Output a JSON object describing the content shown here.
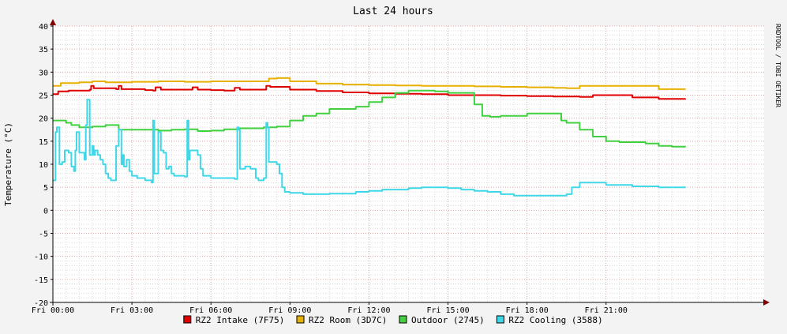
{
  "chart_data": {
    "type": "line",
    "title": "Last 24 hours",
    "ylabel": "Temperature (°C)",
    "xlabel": "",
    "watermark": "RRDTOOL / TOBI OETIKER",
    "ylim": [
      -20,
      40
    ],
    "xlim": [
      0,
      27
    ],
    "yticks": [
      {
        "value": 40,
        "label": "40"
      },
      {
        "value": 35,
        "label": "35"
      },
      {
        "value": 30,
        "label": "30"
      },
      {
        "value": 25,
        "label": "25"
      },
      {
        "value": 20,
        "label": "20"
      },
      {
        "value": 15,
        "label": "15"
      },
      {
        "value": 10,
        "label": "10"
      },
      {
        "value": 5,
        "label": "5"
      },
      {
        "value": 0,
        "label": "0"
      },
      {
        "value": -5,
        "label": "-5"
      },
      {
        "value": -10,
        "label": "-10"
      },
      {
        "value": -15,
        "label": "-15"
      },
      {
        "value": -20,
        "label": "-20"
      }
    ],
    "xticks": [
      {
        "value": 0,
        "label": "Fri 00:00"
      },
      {
        "value": 3,
        "label": "Fri 03:00"
      },
      {
        "value": 6,
        "label": "Fri 06:00"
      },
      {
        "value": 9,
        "label": "Fri 09:00"
      },
      {
        "value": 12,
        "label": "Fri 12:00"
      },
      {
        "value": 15,
        "label": "Fri 15:00"
      },
      {
        "value": 18,
        "label": "Fri 18:00"
      },
      {
        "value": 21,
        "label": "Fri 21:00"
      }
    ],
    "grid": true,
    "legend_position": "bottom",
    "series": [
      {
        "name": "RZ2 Intake (7F75)",
        "color": "#e00000",
        "x": [
          0,
          0.2,
          0.4,
          0.6,
          1.0,
          1.4,
          1.45,
          1.55,
          2.4,
          2.5,
          2.6,
          3.5,
          3.8,
          3.9,
          4.1,
          5.0,
          5.2,
          5.3,
          5.5,
          6.0,
          6.5,
          6.8,
          6.9,
          7.1,
          8.0,
          8.1,
          8.25,
          9.0,
          10.0,
          11.0,
          12.0,
          13.0,
          14.0,
          15.0,
          16.0,
          17.0,
          18.0,
          19.0,
          20.0,
          20.5,
          21.0,
          22.0,
          23.0,
          24.0
        ],
        "values": [
          25.2,
          25.8,
          25.8,
          26.0,
          26.0,
          26.2,
          27.0,
          26.5,
          26.3,
          27.0,
          26.3,
          26.1,
          26.0,
          26.7,
          26.2,
          26.2,
          26.2,
          26.7,
          26.2,
          26.1,
          26.0,
          26.0,
          26.6,
          26.2,
          26.2,
          27.0,
          26.8,
          26.2,
          25.9,
          25.6,
          25.4,
          25.3,
          25.2,
          25.0,
          25.0,
          24.9,
          24.8,
          24.7,
          24.6,
          25.0,
          25.0,
          24.5,
          24.2,
          24.0
        ]
      },
      {
        "name": "RZ2 Room (3D7C)",
        "color": "#e8b000",
        "x": [
          0,
          0.3,
          1.0,
          1.5,
          2.0,
          3.0,
          4.0,
          5.0,
          6.0,
          7.0,
          8.0,
          8.2,
          8.5,
          9.0,
          10.0,
          11.0,
          12.0,
          13.0,
          14.0,
          15.0,
          16.0,
          17.0,
          18.0,
          19.0,
          19.5,
          20.0,
          21.0,
          22.0,
          23.0,
          24.0
        ],
        "values": [
          27.0,
          27.6,
          27.8,
          28.0,
          27.8,
          27.9,
          28.0,
          27.9,
          28.0,
          28.0,
          28.0,
          28.6,
          28.7,
          28.0,
          27.5,
          27.3,
          27.2,
          27.1,
          27.0,
          27.0,
          26.9,
          26.8,
          26.7,
          26.6,
          26.5,
          27.0,
          27.0,
          27.0,
          26.3,
          26.2
        ]
      },
      {
        "name": "Outdoor (2745)",
        "color": "#40d040",
        "x": [
          0,
          0.5,
          0.7,
          1.0,
          1.5,
          2.0,
          2.5,
          3.0,
          3.5,
          4.0,
          4.5,
          5.0,
          5.5,
          6.0,
          6.5,
          7.0,
          7.5,
          8.0,
          8.5,
          9.0,
          9.5,
          10.0,
          10.5,
          11.0,
          11.5,
          12.0,
          12.5,
          13.0,
          13.5,
          14.0,
          14.5,
          15.0,
          15.5,
          16.0,
          16.3,
          16.6,
          17.0,
          17.5,
          18.0,
          18.5,
          19.0,
          19.3,
          19.5,
          20.0,
          20.5,
          21.0,
          21.5,
          22.0,
          22.5,
          23.0,
          23.5,
          24.0
        ],
        "values": [
          19.5,
          19.0,
          18.5,
          18.0,
          18.2,
          18.5,
          17.5,
          17.5,
          17.5,
          17.3,
          17.5,
          17.6,
          17.2,
          17.3,
          17.6,
          17.8,
          17.8,
          18.0,
          18.2,
          19.5,
          20.5,
          21.0,
          22.0,
          22.0,
          22.5,
          23.5,
          24.5,
          25.5,
          26.0,
          26.0,
          25.8,
          25.5,
          25.5,
          23.0,
          20.5,
          20.3,
          20.5,
          20.5,
          21.0,
          21.0,
          21.0,
          19.5,
          19.0,
          17.5,
          16.0,
          15.0,
          14.8,
          14.8,
          14.5,
          14.0,
          13.8,
          14.0
        ]
      },
      {
        "name": "RZ2 Cooling (3588)",
        "color": "#40d8e8",
        "x": [
          0,
          0.1,
          0.15,
          0.25,
          0.35,
          0.45,
          0.6,
          0.7,
          0.8,
          0.85,
          0.9,
          1.0,
          1.1,
          1.2,
          1.25,
          1.3,
          1.4,
          1.5,
          1.55,
          1.6,
          1.7,
          1.8,
          1.9,
          2.0,
          2.1,
          2.2,
          2.3,
          2.4,
          2.5,
          2.6,
          2.65,
          2.7,
          2.8,
          2.9,
          3.0,
          3.1,
          3.2,
          3.5,
          3.7,
          3.75,
          3.8,
          3.85,
          4.0,
          4.1,
          4.2,
          4.3,
          4.4,
          4.5,
          4.6,
          4.7,
          5.0,
          5.1,
          5.15,
          5.2,
          5.3,
          5.5,
          5.6,
          5.7,
          5.8,
          6.0,
          6.5,
          6.9,
          7.0,
          7.05,
          7.1,
          7.3,
          7.5,
          7.7,
          7.8,
          7.9,
          8.0,
          8.1,
          8.15,
          8.2,
          8.3,
          8.5,
          8.6,
          8.7,
          8.8,
          9.0,
          9.5,
          10.0,
          10.5,
          11.0,
          11.5,
          12.0,
          12.5,
          13.0,
          13.5,
          14.0,
          14.5,
          15.0,
          15.5,
          16.0,
          16.5,
          17.0,
          17.5,
          18.0,
          18.5,
          19.0,
          19.5,
          19.6,
          19.7,
          20.0,
          20.5,
          21.0,
          22.0,
          23.0,
          24.0
        ],
        "values": [
          6.5,
          17.0,
          18.0,
          10.0,
          10.5,
          13.0,
          12.5,
          9.5,
          8.5,
          13.0,
          17.0,
          12.5,
          12.5,
          11.0,
          18.5,
          24.0,
          12.0,
          14.0,
          12.0,
          13.0,
          12.0,
          11.0,
          10.0,
          8.0,
          7.0,
          6.5,
          6.5,
          14.0,
          17.5,
          10.0,
          12.0,
          9.5,
          11.0,
          8.5,
          7.5,
          7.5,
          7.0,
          6.5,
          6.5,
          6.0,
          19.5,
          8.0,
          17.0,
          13.0,
          12.5,
          9.0,
          9.5,
          8.0,
          7.5,
          7.5,
          7.3,
          19.5,
          11.0,
          13.0,
          13.0,
          12.0,
          9.0,
          7.5,
          7.5,
          7.0,
          7.0,
          6.8,
          18.0,
          17.5,
          9.0,
          9.5,
          9.0,
          7.0,
          6.5,
          6.5,
          7.0,
          19.0,
          18.0,
          10.5,
          10.5,
          10.0,
          8.0,
          5.0,
          4.0,
          3.8,
          3.5,
          3.5,
          3.6,
          3.6,
          4.0,
          4.2,
          4.5,
          4.5,
          4.8,
          5.0,
          5.0,
          4.8,
          4.5,
          4.2,
          4.0,
          3.5,
          3.2,
          3.2,
          3.2,
          3.2,
          3.5,
          3.5,
          5.0,
          6.0,
          6.0,
          5.5,
          5.2,
          5.0,
          4.8
        ]
      }
    ]
  }
}
